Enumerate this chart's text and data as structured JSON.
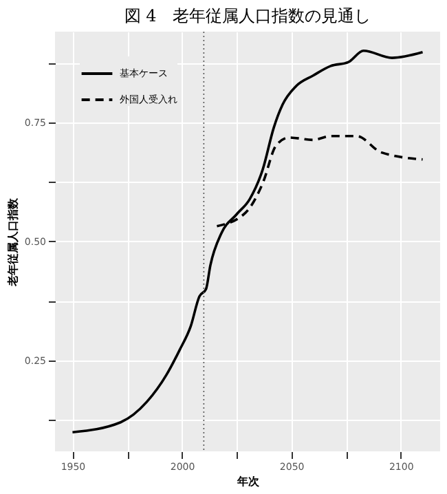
{
  "chart_data": {
    "type": "line",
    "title": "図 4　老年従属人口指数の見通し",
    "xlabel": "年次",
    "ylabel": "老年従属人口指数",
    "series": [
      {
        "name": "基本ケース",
        "color": "#000000",
        "line_style": "solid",
        "x": [
          1950,
          1972,
          1984,
          1993,
          1999,
          2004,
          2008,
          2011,
          2013,
          2018,
          2025,
          2031,
          2037,
          2042,
          2046,
          2052,
          2060,
          2068,
          2076,
          2083,
          2096,
          2110
        ],
        "values": [
          0.1,
          0.121,
          0.164,
          0.221,
          0.273,
          0.322,
          0.385,
          0.4,
          0.45,
          0.517,
          0.557,
          0.589,
          0.652,
          0.739,
          0.787,
          0.825,
          0.848,
          0.868,
          0.876,
          0.9,
          0.885,
          0.897
        ]
      },
      {
        "name": "外国人受入れ",
        "color": "#000000",
        "line_style": "dashed",
        "x": [
          2016,
          2029,
          2037,
          2043,
          2049,
          2060,
          2068,
          2080,
          2091,
          2110
        ],
        "values": [
          0.532,
          0.56,
          0.623,
          0.701,
          0.718,
          0.713,
          0.721,
          0.721,
          0.687,
          0.672
        ]
      }
    ],
    "xlim": [
      1942,
      2118
    ],
    "xticks": [
      1950,
      {
        "value": 1975,
        "label": null
      },
      2000,
      {
        "value": 2025,
        "label": null
      },
      2050,
      {
        "value": 2075,
        "label": null
      },
      2100
    ],
    "ylim": [
      0.06,
      0.94
    ],
    "yticks": [
      {
        "value": 0.125,
        "label": null
      },
      {
        "value": 0.25,
        "label": "0.25"
      },
      {
        "value": 0.375,
        "label": null
      },
      {
        "value": 0.5,
        "label": "0.50"
      },
      {
        "value": 0.625,
        "label": null
      },
      {
        "value": 0.75,
        "label": "0.75"
      },
      {
        "value": 0.875,
        "label": null
      }
    ],
    "ref_lines": [
      {
        "axis": "x",
        "value": 2010,
        "line_style": "dotted",
        "color": "#555555"
      }
    ],
    "grid": true,
    "legend": "top left"
  }
}
